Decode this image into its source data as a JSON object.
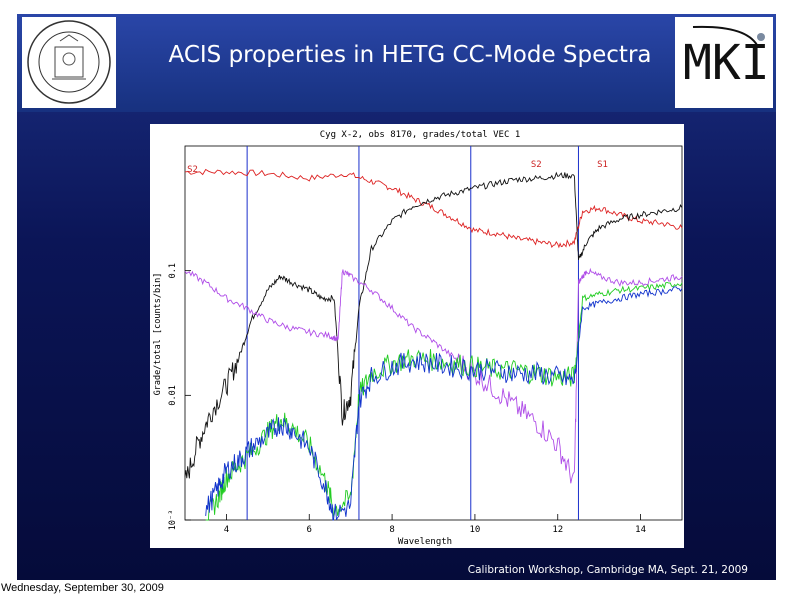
{
  "slide": {
    "title": "ACIS properties in HETG CC-Mode Spectra",
    "footer": "Calibration Workshop, Cambridge MA, Sept. 21, 2009",
    "date_label": "Wednesday, September 30, 2009",
    "seal_icon": "mit-seal-icon",
    "logo_icon": "mki-logo-icon",
    "logo_text": "MKI"
  },
  "chart_data": {
    "type": "line",
    "title": "Cyg X-2, obs 8170, grades/total VEC 1",
    "xlabel": "Wavelength",
    "ylabel": "Grade/total  [counts/bin]",
    "xlim": [
      3,
      15
    ],
    "ylim_log": [
      0.001,
      1
    ],
    "y_scale": "log",
    "x_ticks": [
      4,
      6,
      8,
      10,
      12,
      14
    ],
    "x_tick_labels": [
      "4",
      "6",
      "8",
      "10",
      "12",
      "14"
    ],
    "y_ticks": [
      0.001,
      0.01,
      0.1
    ],
    "y_tick_labels": [
      "10⁻³",
      "0.01",
      "0.1"
    ],
    "vlines": [
      4.5,
      7.2,
      9.9,
      12.5
    ],
    "annotations": [
      {
        "text": "S2",
        "x": 3.05,
        "y": 0.62,
        "color": "#cc2222"
      },
      {
        "text": "S2",
        "x": 11.35,
        "y": 0.68,
        "color": "#cc2222"
      },
      {
        "text": "S1",
        "x": 12.95,
        "y": 0.68,
        "color": "#cc2222"
      }
    ],
    "series": [
      {
        "color": "#dd2222",
        "x": [
          3.0,
          4.0,
          5.0,
          6.0,
          6.9,
          7.5,
          8.0,
          8.5,
          9.0,
          9.5,
          10.0,
          10.5,
          11.0,
          11.5,
          12.0,
          12.4,
          12.6,
          13.0,
          13.5,
          14.0,
          14.5,
          15.0
        ],
        "y": [
          0.62,
          0.62,
          0.6,
          0.55,
          0.6,
          0.52,
          0.46,
          0.38,
          0.32,
          0.26,
          0.21,
          0.2,
          0.18,
          0.17,
          0.16,
          0.17,
          0.3,
          0.32,
          0.28,
          0.25,
          0.24,
          0.22
        ]
      },
      {
        "color": "#111111",
        "x": [
          3.0,
          3.3,
          3.6,
          4.0,
          4.3,
          4.6,
          5.0,
          5.3,
          5.6,
          6.0,
          6.3,
          6.6,
          6.8,
          7.0,
          7.2,
          7.5,
          8.0,
          8.5,
          9.0,
          9.5,
          10.0,
          10.5,
          11.0,
          11.5,
          12.0,
          12.4,
          12.5,
          12.7,
          13.0,
          13.5,
          14.0,
          14.5,
          15.0
        ],
        "y": [
          0.002,
          0.004,
          0.007,
          0.012,
          0.02,
          0.04,
          0.07,
          0.09,
          0.08,
          0.07,
          0.06,
          0.06,
          0.007,
          0.01,
          0.05,
          0.15,
          0.25,
          0.33,
          0.38,
          0.42,
          0.46,
          0.5,
          0.54,
          0.55,
          0.58,
          0.58,
          0.12,
          0.17,
          0.22,
          0.26,
          0.28,
          0.3,
          0.32
        ]
      },
      {
        "color": "#b04ee8",
        "x": [
          3.0,
          3.5,
          4.0,
          4.5,
          5.0,
          5.5,
          6.0,
          6.5,
          6.7,
          6.8,
          7.0,
          7.5,
          8.0,
          8.5,
          9.0,
          9.5,
          10.0,
          10.5,
          11.0,
          11.5,
          12.0,
          12.4,
          12.5,
          12.7,
          13.0,
          13.5,
          14.0,
          14.5,
          15.0
        ],
        "y": [
          0.1,
          0.08,
          0.06,
          0.05,
          0.04,
          0.035,
          0.032,
          0.03,
          0.028,
          0.1,
          0.09,
          0.07,
          0.05,
          0.035,
          0.027,
          0.02,
          0.015,
          0.011,
          0.008,
          0.006,
          0.004,
          0.002,
          0.08,
          0.1,
          0.09,
          0.08,
          0.08,
          0.085,
          0.09
        ]
      },
      {
        "color": "#22cc22",
        "x": [
          3.5,
          3.8,
          4.0,
          4.3,
          4.6,
          5.0,
          5.3,
          5.6,
          6.0,
          6.4,
          6.6,
          7.0,
          7.2,
          7.5,
          8.0,
          8.5,
          9.0,
          9.5,
          10.0,
          10.5,
          11.0,
          11.5,
          12.0,
          12.4,
          12.6,
          13.0,
          13.5,
          14.0,
          14.5,
          15.0
        ],
        "y": [
          0.001,
          0.0015,
          0.0022,
          0.0028,
          0.0035,
          0.005,
          0.0065,
          0.0055,
          0.004,
          0.002,
          0.0012,
          0.0015,
          0.01,
          0.015,
          0.018,
          0.02,
          0.019,
          0.018,
          0.017,
          0.016,
          0.016,
          0.015,
          0.014,
          0.014,
          0.06,
          0.065,
          0.07,
          0.072,
          0.075,
          0.08
        ]
      },
      {
        "color": "#1133cc",
        "x": [
          3.5,
          3.8,
          4.0,
          4.3,
          4.6,
          5.0,
          5.3,
          5.6,
          6.0,
          6.4,
          6.6,
          7.0,
          7.2,
          7.5,
          8.0,
          8.5,
          9.0,
          9.5,
          10.0,
          10.5,
          11.0,
          11.5,
          12.0,
          12.4,
          12.6,
          13.0,
          13.5,
          14.0,
          14.5,
          15.0
        ],
        "y": [
          0.0012,
          0.0018,
          0.0025,
          0.003,
          0.0038,
          0.0048,
          0.006,
          0.0052,
          0.0038,
          0.0018,
          0.0011,
          0.0013,
          0.009,
          0.014,
          0.017,
          0.019,
          0.018,
          0.017,
          0.016,
          0.016,
          0.015,
          0.015,
          0.014,
          0.013,
          0.05,
          0.055,
          0.06,
          0.065,
          0.068,
          0.072
        ]
      }
    ]
  }
}
